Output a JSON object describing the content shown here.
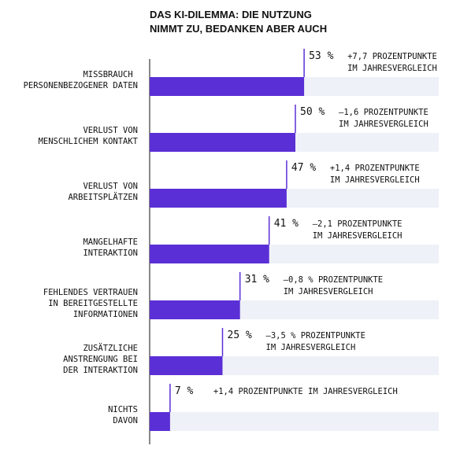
{
  "chart_data": {
    "type": "hbar",
    "title": "DAS KI-DILEMMA: DIE NUTZUNG\nNIMMT ZU, BEDANKEN ABER AUCH",
    "categories": [
      "MISSBRAUCH \nPERSONENBEZOGENER DATEN",
      "VERLUST VON\nMENSCHLICHEM KONTAKT",
      "VERLUST VON\nARBEITSPLÄTZEN",
      "MANGELHAFTE\nINTERAKTION",
      "FEHLENDES VERTRAUEN\nIN BEREITGESTELLTE\nINFORMATIONEN",
      "ZUSÄTZLICHE\nANSTRENGUNG BEI\nDER INTERAKTION",
      "NICHTS\nDAVON"
    ],
    "values": [
      53,
      50,
      47,
      41,
      31,
      25,
      7
    ],
    "value_labels": [
      "53 %",
      "50 %",
      "47 %",
      "41 %",
      "31 %",
      "25 %",
      "7 %"
    ],
    "annotations": [
      "+7,7 PROZENTPUNKTE\nIM JAHRESVERGLEICH",
      "–1,6 PROZENTPUNKTE\nIM JAHRESVERGLEICH",
      "+1,4 PROZENTPUNKTE\nIM JAHRESVERGLEICH",
      "–2,1 PROZENTPUNKTE\nIM JAHRESVERGLEICH",
      "–0,8 % PROZENTPUNKTE\nIM JAHRESVERGLEICH",
      "–3,5 % PROZENTPUNKTE\nIM JAHRESVERGLEICH",
      "+1,4 PROZENTPUNKTE IM JAHRESVERGLEICH"
    ],
    "color": "#5b2fd6",
    "track_color": "#eef1f7",
    "xlim": [
      0,
      100
    ]
  }
}
